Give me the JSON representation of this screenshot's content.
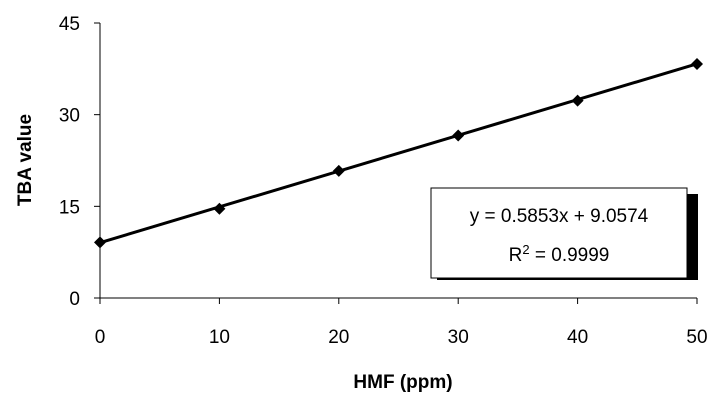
{
  "chart_data": {
    "type": "scatter",
    "xlabel": "HMF (ppm)",
    "ylabel": "TBA value",
    "xlim": [
      0,
      50
    ],
    "ylim": [
      0,
      45
    ],
    "xticks": [
      0,
      10,
      20,
      30,
      40,
      50
    ],
    "yticks": [
      0,
      15,
      30,
      45
    ],
    "grid": false,
    "series": [
      {
        "x": [
          0,
          10,
          20,
          30,
          40,
          50
        ],
        "y": [
          9.1,
          14.6,
          20.8,
          26.6,
          32.3,
          38.3
        ],
        "marker": "diamond",
        "color": "#000000"
      }
    ],
    "trendline": {
      "slope": 0.5853,
      "intercept": 9.0574,
      "color": "#000000"
    },
    "annotation": {
      "equation": "y = 0.5853x + 9.0574",
      "r2_prefix": "R",
      "r2_sup": "2",
      "r2_rest": " = 0.9999",
      "placement": "lower-right"
    }
  }
}
